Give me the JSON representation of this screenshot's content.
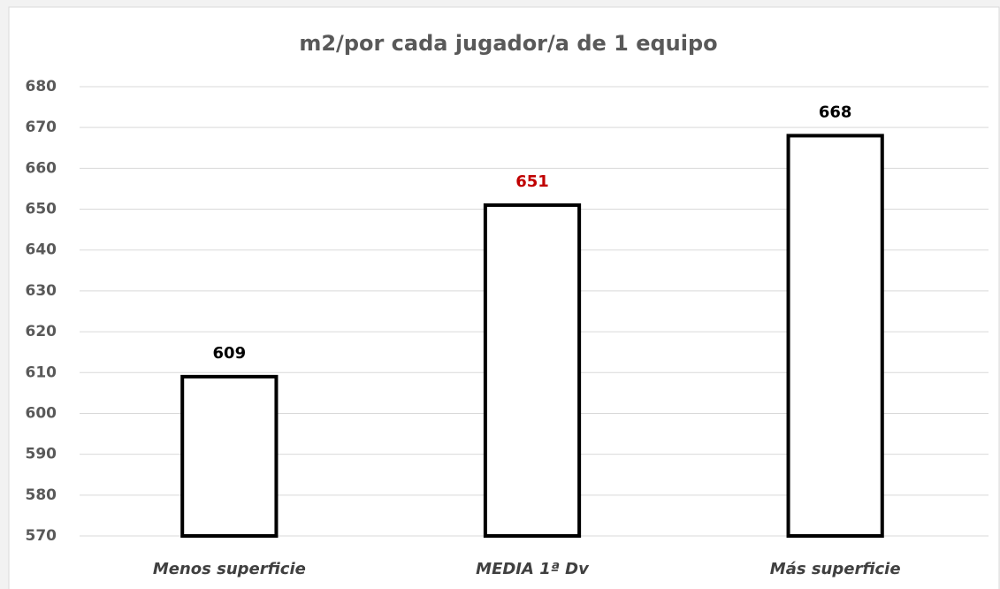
{
  "chart_data": {
    "type": "bar",
    "title": "m2/por cada jugador/a de 1 equipo",
    "categories": [
      "Menos superficie",
      "MEDIA 1ª Dv",
      "Más superficie"
    ],
    "values": [
      609,
      651,
      668
    ],
    "color": "#ffffff",
    "edge_color": "#000000",
    "value_label_colors": [
      "#000000",
      "#c00000",
      "#000000"
    ],
    "ylim": [
      570,
      680
    ],
    "yticks": [
      570,
      580,
      590,
      600,
      610,
      620,
      630,
      640,
      650,
      660,
      670,
      680
    ],
    "grid": true
  }
}
